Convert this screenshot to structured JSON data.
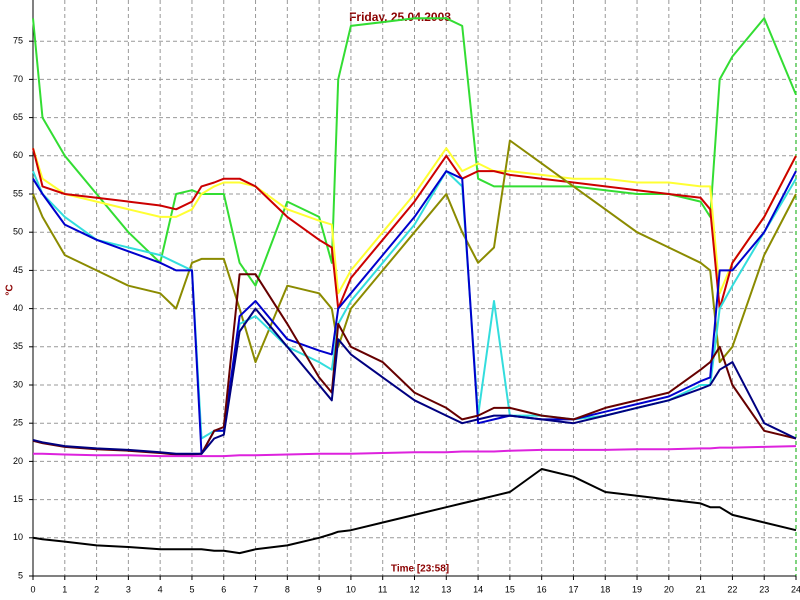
{
  "chart_data": {
    "type": "line",
    "title": "Friday, 25.04.2008",
    "x_label": "Time [23:58]",
    "y_label": "°C",
    "x": [
      0,
      0.3,
      1,
      2,
      3,
      4,
      4.5,
      5,
      5.3,
      5.7,
      6,
      6.5,
      7,
      8,
      9,
      9.4,
      9.6,
      10,
      11,
      12,
      13,
      13.5,
      14,
      14.5,
      15,
      16,
      17,
      18,
      19,
      20,
      21,
      21.3,
      21.6,
      22,
      23,
      24
    ],
    "series": [
      {
        "color": "#33dd33",
        "values": [
          78,
          65,
          60,
          55,
          50,
          46,
          55,
          55.5,
          55,
          55,
          55,
          46,
          43,
          54,
          52,
          46,
          70,
          77,
          77.5,
          78,
          78,
          77,
          57,
          56,
          56,
          56,
          56,
          55.5,
          55,
          55,
          54,
          52,
          70,
          73,
          78,
          68
        ]
      },
      {
        "color": "#ffff33",
        "values": [
          61,
          57,
          55,
          54,
          53,
          52,
          52,
          53,
          55,
          56,
          56.5,
          56.5,
          56,
          53,
          51.5,
          51,
          42,
          45,
          50,
          55,
          61,
          58,
          59,
          58,
          58,
          57.5,
          57,
          57,
          56.5,
          56.5,
          56,
          56,
          42,
          46,
          52,
          60
        ]
      },
      {
        "color": "#cc0000",
        "values": [
          61,
          56,
          55,
          54.5,
          54,
          53.5,
          53,
          54,
          56,
          56.5,
          57,
          57,
          56,
          52,
          49,
          48,
          40,
          44,
          49,
          54,
          60,
          57,
          58,
          58,
          57.5,
          57,
          56.5,
          56,
          55.5,
          55,
          54.5,
          53,
          40,
          46,
          52,
          60
        ]
      },
      {
        "color": "#8b8b00",
        "values": [
          55,
          52,
          47,
          45,
          43,
          42,
          40,
          46,
          46.5,
          46.5,
          46.5,
          40,
          33,
          43,
          42,
          40,
          35,
          40,
          45,
          50,
          55,
          50,
          46,
          48,
          62,
          59,
          56,
          53,
          50,
          48,
          46,
          45,
          33,
          35,
          47,
          55
        ]
      },
      {
        "color": "#33dddd",
        "values": [
          58,
          55,
          52,
          49,
          48,
          47,
          46,
          45,
          23,
          24,
          24,
          38,
          39,
          35,
          33,
          32,
          38,
          41,
          46,
          51,
          58,
          56,
          26,
          41,
          26,
          26,
          25.5,
          26,
          27,
          28,
          30,
          30,
          40,
          43,
          50,
          57
        ]
      },
      {
        "color": "#0000cc",
        "values": [
          57,
          55,
          51,
          49,
          47.5,
          46,
          45,
          45,
          21,
          24,
          24,
          39,
          41,
          36,
          34.5,
          34,
          40,
          42,
          47,
          52,
          58,
          57,
          25,
          25.5,
          26,
          25.5,
          25.5,
          26.5,
          27.5,
          28.5,
          30.5,
          31,
          45,
          45,
          50,
          58
        ]
      },
      {
        "color": "#660000",
        "values": [
          22.7,
          22.4,
          21.9,
          21.6,
          21.4,
          21.1,
          20.9,
          20.9,
          21,
          24,
          24.5,
          44.5,
          44.5,
          38,
          31,
          29,
          38,
          35,
          33,
          29,
          27,
          25.5,
          26,
          27,
          27,
          26,
          25.5,
          27,
          28,
          29,
          32,
          33,
          35,
          30,
          24,
          23
        ]
      },
      {
        "color": "#000080",
        "values": [
          22.8,
          22.5,
          22,
          21.7,
          21.5,
          21.2,
          21,
          21,
          21,
          23,
          23.5,
          37,
          40,
          35,
          30,
          28,
          36,
          34,
          31,
          28,
          26,
          25,
          25.5,
          26,
          26,
          25.5,
          25,
          26,
          27,
          28,
          29.5,
          30,
          32,
          33,
          25,
          23
        ]
      },
      {
        "color": "#dd22dd",
        "values": [
          21,
          21,
          20.9,
          20.8,
          20.8,
          20.7,
          20.7,
          20.7,
          20.7,
          20.7,
          20.7,
          20.8,
          20.8,
          20.9,
          21,
          21,
          21,
          21,
          21.1,
          21.2,
          21.2,
          21.3,
          21.3,
          21.3,
          21.4,
          21.5,
          21.5,
          21.5,
          21.6,
          21.6,
          21.7,
          21.7,
          21.8,
          21.8,
          21.9,
          22
        ]
      },
      {
        "color": "#000000",
        "values": [
          10,
          9.8,
          9.5,
          9,
          8.8,
          8.5,
          8.5,
          8.5,
          8.5,
          8.3,
          8.3,
          8,
          8.5,
          9,
          10,
          10.5,
          10.8,
          11,
          12,
          13,
          14,
          14.5,
          15,
          15.5,
          16,
          19,
          18,
          16,
          15.5,
          15,
          14.5,
          14,
          14,
          13,
          12,
          11
        ]
      }
    ],
    "xlim": [
      0,
      24
    ],
    "xticks": [
      0,
      1,
      2,
      3,
      4,
      5,
      6,
      7,
      8,
      9,
      10,
      11,
      12,
      13,
      14,
      15,
      16,
      17,
      18,
      19,
      20,
      21,
      22,
      23,
      24
    ],
    "ylim": [
      5,
      80
    ],
    "yticks": [
      5,
      10,
      15,
      20,
      25,
      30,
      35,
      40,
      45,
      50,
      55,
      60,
      65,
      70,
      75
    ],
    "grid": true
  }
}
